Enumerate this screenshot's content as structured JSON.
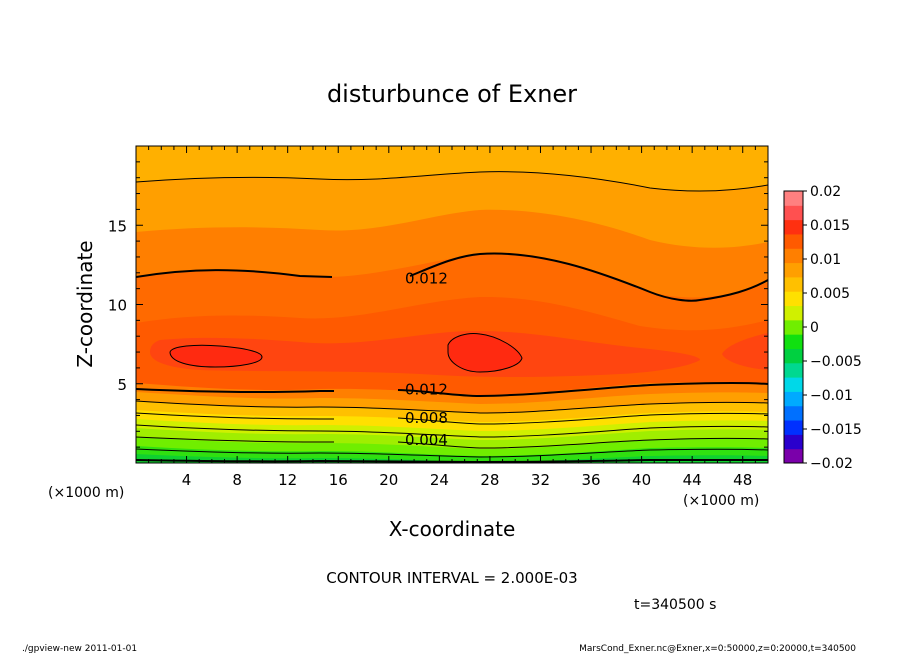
{
  "chart_data": {
    "type": "contour",
    "title": "disturbunce of Exner",
    "xlabel": "X-coordinate",
    "ylabel": "Z-coordinate",
    "x_unit": "(×1000 m)",
    "y_unit": "(×1000 m)",
    "xlim": [
      0,
      50
    ],
    "ylim": [
      0,
      20
    ],
    "x_ticks": [
      4,
      8,
      12,
      16,
      20,
      24,
      28,
      32,
      36,
      40,
      44,
      48
    ],
    "y_ticks": [
      5,
      10,
      15
    ],
    "colorbar": {
      "ticks": [
        "0.02",
        "0.015",
        "0.01",
        "0.005",
        "0",
        "−0.005",
        "−0.01",
        "−0.015",
        "−0.02"
      ],
      "range": [
        -0.02,
        0.02
      ],
      "interval": 0.0025,
      "colors": [
        "#7a00aa",
        "#2a00cc",
        "#0030ff",
        "#0070ff",
        "#00aaff",
        "#00d8e8",
        "#00d890",
        "#00d040",
        "#10e010",
        "#70ee00",
        "#d0f000",
        "#ffe000",
        "#ffc000",
        "#ff9f00",
        "#ff7f00",
        "#ff5a00",
        "#ff3010",
        "#ff5050",
        "#ff8080"
      ]
    },
    "contour_interval_text": "CONTOUR INTERVAL = 2.000E-03",
    "contour_labels": [
      {
        "text": "0.012",
        "x": 21,
        "z": 11.7
      },
      {
        "text": "0.012",
        "x": 21,
        "z": 4.7
      },
      {
        "text": "0.008",
        "x": 21,
        "z": 2.9
      },
      {
        "text": "0.004",
        "x": 21,
        "z": 1.5
      }
    ],
    "field_description": "Exner disturbance decreasing with height from ~0.016 near z≈7 km to ~0 at the ground; maxima (>0.016) near x≈5 km and x≈27 km at z≈7 km",
    "time_label": "t=340500 s"
  },
  "footer": {
    "left": "./gpview-new   2011-01-01",
    "right": "MarsCond_Exner.nc@Exner,x=0:50000,z=0:20000,t=340500"
  }
}
